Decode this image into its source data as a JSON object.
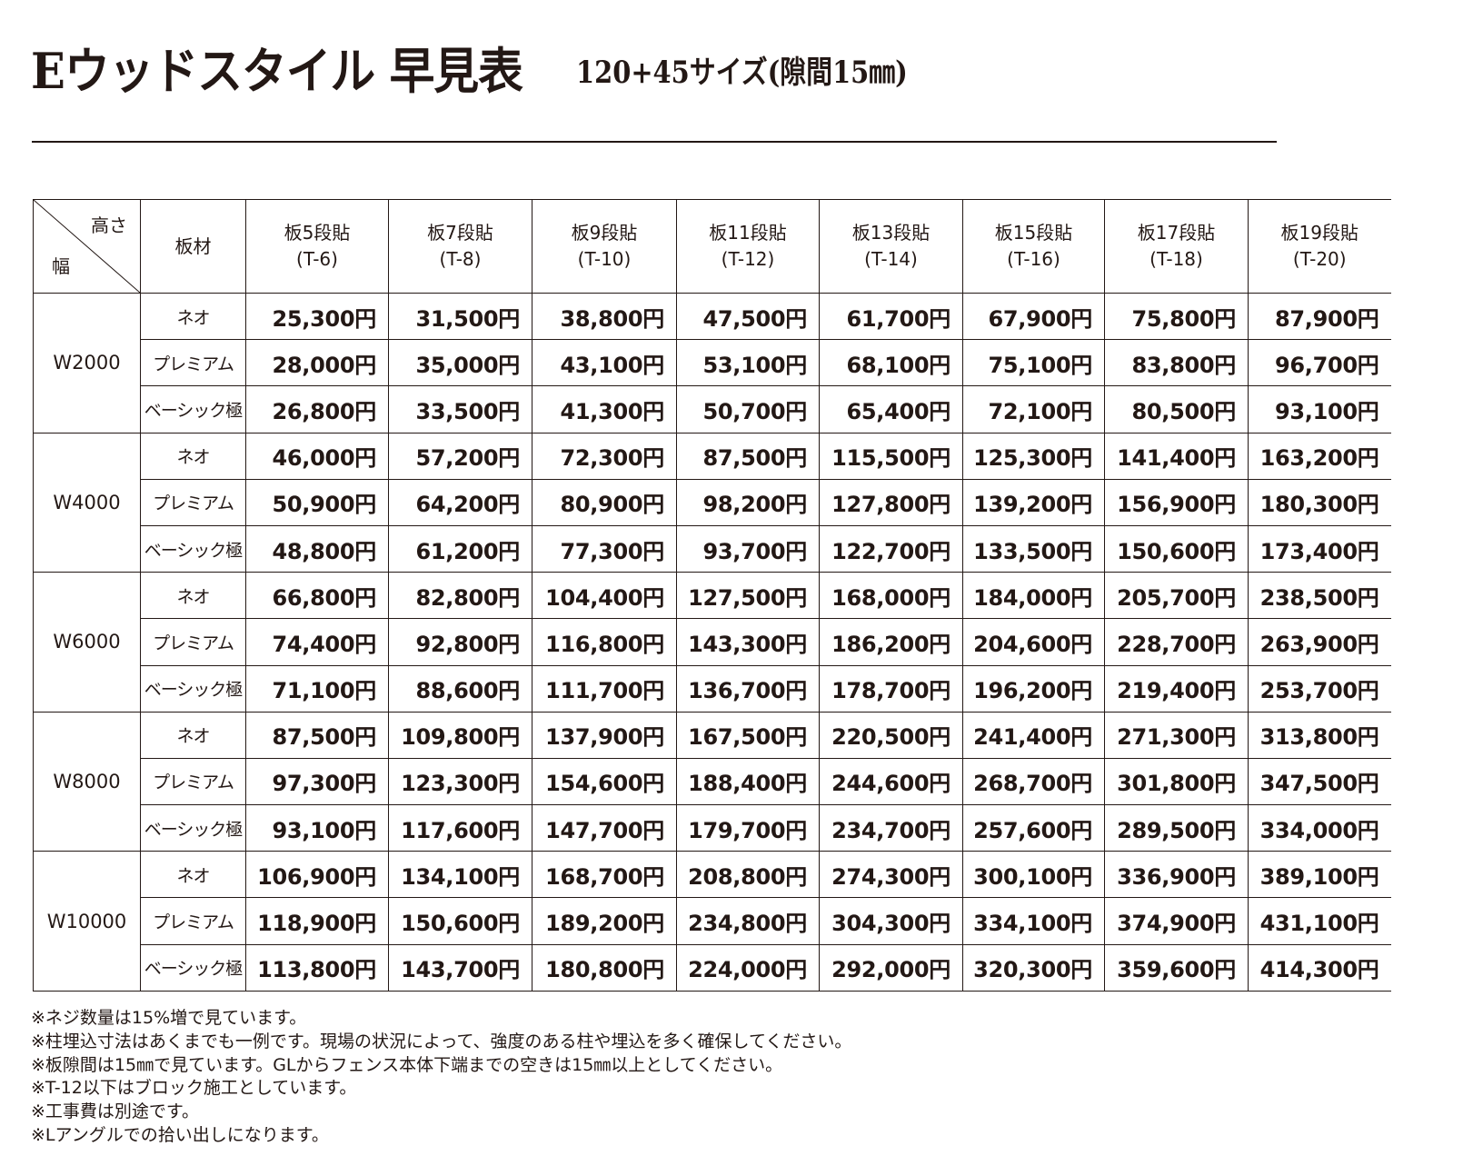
{
  "title": {
    "main": "Eウッドスタイル 早見表",
    "sub": "120+45サイズ(隙間15㎜)"
  },
  "table": {
    "corner": {
      "height_label": "高さ",
      "width_label": "幅"
    },
    "material_header": "板材",
    "columns": [
      {
        "name": "板5段貼",
        "code": "(T-6)"
      },
      {
        "name": "板7段貼",
        "code": "(T-8)"
      },
      {
        "name": "板9段貼",
        "code": "(T-10)"
      },
      {
        "name": "板11段貼",
        "code": "(T-12)"
      },
      {
        "name": "板13段貼",
        "code": "(T-14)"
      },
      {
        "name": "板15段貼",
        "code": "(T-16)"
      },
      {
        "name": "板17段貼",
        "code": "(T-18)"
      },
      {
        "name": "板19段貼",
        "code": "(T-20)"
      }
    ],
    "groups": [
      {
        "width": "W2000",
        "rows": [
          {
            "material": "ネオ",
            "prices": [
              "25,300円",
              "31,500円",
              "38,800円",
              "47,500円",
              "61,700円",
              "67,900円",
              "75,800円",
              "87,900円"
            ]
          },
          {
            "material": "プレミアム",
            "prices": [
              "28,000円",
              "35,000円",
              "43,100円",
              "53,100円",
              "68,100円",
              "75,100円",
              "83,800円",
              "96,700円"
            ]
          },
          {
            "material": "ベーシック極",
            "prices": [
              "26,800円",
              "33,500円",
              "41,300円",
              "50,700円",
              "65,400円",
              "72,100円",
              "80,500円",
              "93,100円"
            ]
          }
        ]
      },
      {
        "width": "W4000",
        "rows": [
          {
            "material": "ネオ",
            "prices": [
              "46,000円",
              "57,200円",
              "72,300円",
              "87,500円",
              "115,500円",
              "125,300円",
              "141,400円",
              "163,200円"
            ]
          },
          {
            "material": "プレミアム",
            "prices": [
              "50,900円",
              "64,200円",
              "80,900円",
              "98,200円",
              "127,800円",
              "139,200円",
              "156,900円",
              "180,300円"
            ]
          },
          {
            "material": "ベーシック極",
            "prices": [
              "48,800円",
              "61,200円",
              "77,300円",
              "93,700円",
              "122,700円",
              "133,500円",
              "150,600円",
              "173,400円"
            ]
          }
        ]
      },
      {
        "width": "W6000",
        "rows": [
          {
            "material": "ネオ",
            "prices": [
              "66,800円",
              "82,800円",
              "104,400円",
              "127,500円",
              "168,000円",
              "184,000円",
              "205,700円",
              "238,500円"
            ]
          },
          {
            "material": "プレミアム",
            "prices": [
              "74,400円",
              "92,800円",
              "116,800円",
              "143,300円",
              "186,200円",
              "204,600円",
              "228,700円",
              "263,900円"
            ]
          },
          {
            "material": "ベーシック極",
            "prices": [
              "71,100円",
              "88,600円",
              "111,700円",
              "136,700円",
              "178,700円",
              "196,200円",
              "219,400円",
              "253,700円"
            ]
          }
        ]
      },
      {
        "width": "W8000",
        "rows": [
          {
            "material": "ネオ",
            "prices": [
              "87,500円",
              "109,800円",
              "137,900円",
              "167,500円",
              "220,500円",
              "241,400円",
              "271,300円",
              "313,800円"
            ]
          },
          {
            "material": "プレミアム",
            "prices": [
              "97,300円",
              "123,300円",
              "154,600円",
              "188,400円",
              "244,600円",
              "268,700円",
              "301,800円",
              "347,500円"
            ]
          },
          {
            "material": "ベーシック極",
            "prices": [
              "93,100円",
              "117,600円",
              "147,700円",
              "179,700円",
              "234,700円",
              "257,600円",
              "289,500円",
              "334,000円"
            ]
          }
        ]
      },
      {
        "width": "W10000",
        "rows": [
          {
            "material": "ネオ",
            "prices": [
              "106,900円",
              "134,100円",
              "168,700円",
              "208,800円",
              "274,300円",
              "300,100円",
              "336,900円",
              "389,100円"
            ]
          },
          {
            "material": "プレミアム",
            "prices": [
              "118,900円",
              "150,600円",
              "189,200円",
              "234,800円",
              "304,300円",
              "334,100円",
              "374,900円",
              "431,100円"
            ]
          },
          {
            "material": "ベーシック極",
            "prices": [
              "113,800円",
              "143,700円",
              "180,800円",
              "224,000円",
              "292,000円",
              "320,300円",
              "359,600円",
              "414,300円"
            ]
          }
        ]
      }
    ]
  },
  "notes": [
    "※ネジ数量は15%増で見ています。",
    "※柱埋込寸法はあくまでも一例です。現場の状況によって、強度のある柱や埋込を多く確保してください。",
    "※板隙間は15㎜で見ています。GLからフェンス本体下端までの空きは15㎜以上としてください。",
    "※T-12以下はブロック施工としています。",
    "※工事費は別途です。",
    "※Lアングルでの拾い出しになります。"
  ]
}
